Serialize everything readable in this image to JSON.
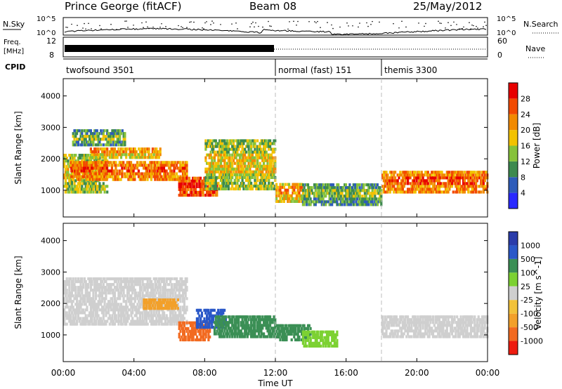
{
  "header": {
    "station": "Prince George (fitACF)",
    "beam": "Beam 08",
    "date": "25/May/2012"
  },
  "top_panel_labels": {
    "nsky": "N.Sky",
    "nsky_ticks": [
      "10^5",
      "10^0"
    ],
    "nsearch": "N.Search",
    "nsearch_ticks": [
      "10^5",
      "10^0"
    ],
    "freq_line1": "Freq.",
    "freq_line2": "[MHz]",
    "freq_ticks": [
      "12",
      "8"
    ],
    "nave": "Nave",
    "nave_ticks": [
      "60",
      "0"
    ],
    "cpid": "CPID"
  },
  "cpid_segments": [
    {
      "label": "twofsound 3501",
      "start_hour": 0,
      "end_hour": 12
    },
    {
      "label": "normal (fast) 151",
      "start_hour": 12,
      "end_hour": 18
    },
    {
      "label": "themis 3300",
      "start_hour": 18,
      "end_hour": 24
    }
  ],
  "time_axis": {
    "label": "Time UT",
    "ticks": [
      "00:00",
      "04:00",
      "08:00",
      "12:00",
      "16:00",
      "20:00",
      "00:00"
    ],
    "tick_hours": [
      0,
      4,
      8,
      12,
      16,
      20,
      24
    ]
  },
  "range_axis": {
    "label": "Slant Range [km]",
    "ticks": [
      "1000",
      "2000",
      "3000",
      "4000"
    ],
    "tick_values": [
      1000,
      2000,
      3000,
      4000
    ],
    "ylim": [
      150,
      4550
    ]
  },
  "power_colorbar": {
    "label": "Power [dB]",
    "ticks": [
      "4",
      "8",
      "12",
      "16",
      "20",
      "24",
      "28"
    ],
    "colors": [
      "#2a2aff",
      "#2e5cba",
      "#3d8a4f",
      "#86c23a",
      "#f2c200",
      "#f28a00",
      "#f24a00",
      "#e80000"
    ]
  },
  "velocity_colorbar": {
    "label": "Velocity [m s^-1]",
    "ticks": [
      "1000",
      "500",
      "100",
      "25",
      "-25",
      "-100",
      "-500",
      "-1000"
    ],
    "colors": [
      "#2a3caa",
      "#2a58c8",
      "#3b8f55",
      "#7cd132",
      "#cfcfcf",
      "#f2c23a",
      "#f2a02a",
      "#f26a20",
      "#ee1c10"
    ]
  },
  "chart_data": [
    {
      "type": "heatmap",
      "panel": "power",
      "xlim_hours": [
        0,
        24
      ],
      "ylim_km": [
        150,
        4550
      ],
      "colorbar_ticks_db": [
        4,
        8,
        12,
        16,
        20,
        24,
        28
      ],
      "echo_bands": [
        {
          "t0": 0.0,
          "t1": 2.5,
          "r0": 900,
          "r1": 2200,
          "level": 3
        },
        {
          "t0": 0.4,
          "t1": 7.0,
          "r0": 1300,
          "r1": 1900,
          "level": 5
        },
        {
          "t0": 1.5,
          "t1": 5.5,
          "r0": 2000,
          "r1": 2400,
          "level": 4
        },
        {
          "t0": 0.5,
          "t1": 3.5,
          "r0": 2400,
          "r1": 2900,
          "level": 2
        },
        {
          "t0": 6.5,
          "t1": 8.7,
          "r0": 800,
          "r1": 1400,
          "level": 6
        },
        {
          "t0": 8.0,
          "t1": 12.0,
          "r0": 1000,
          "r1": 2600,
          "level": 3
        },
        {
          "t0": 12.0,
          "t1": 13.5,
          "r0": 600,
          "r1": 1250,
          "level": 4
        },
        {
          "t0": 13.5,
          "t1": 18.0,
          "r0": 500,
          "r1": 1200,
          "level": 2
        },
        {
          "t0": 18.0,
          "t1": 24.0,
          "r0": 900,
          "r1": 1650,
          "level": 5
        }
      ]
    },
    {
      "type": "heatmap",
      "panel": "velocity",
      "xlim_hours": [
        0,
        24
      ],
      "ylim_km": [
        150,
        4550
      ],
      "colorbar_ticks_ms": [
        1000,
        500,
        100,
        25,
        -25,
        -100,
        -500,
        -1000
      ],
      "echo_bands": [
        {
          "t0": 0.0,
          "t1": 7.0,
          "r0": 1300,
          "r1": 2800,
          "velocity": 0
        },
        {
          "t0": 4.5,
          "t1": 6.5,
          "r0": 1800,
          "r1": 2200,
          "velocity": -300
        },
        {
          "t0": 6.5,
          "t1": 8.3,
          "r0": 800,
          "r1": 1400,
          "velocity": -600
        },
        {
          "t0": 7.5,
          "t1": 9.2,
          "r0": 1200,
          "r1": 1800,
          "velocity": 800
        },
        {
          "t0": 8.5,
          "t1": 12.0,
          "r0": 900,
          "r1": 1600,
          "velocity": 150
        },
        {
          "t0": 12.0,
          "t1": 14.0,
          "r0": 800,
          "r1": 1300,
          "velocity": 200
        },
        {
          "t0": 13.5,
          "t1": 15.5,
          "r0": 600,
          "r1": 1100,
          "velocity": 60
        },
        {
          "t0": 18.0,
          "t1": 24.0,
          "r0": 900,
          "r1": 1600,
          "velocity": 0
        }
      ]
    }
  ]
}
